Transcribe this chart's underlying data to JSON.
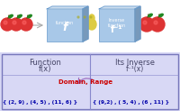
{
  "bg_top": "#ffffff",
  "bg_bottom": "#d8d8f5",
  "box_color_light": "#a8c8e8",
  "box_color_dark": "#6699cc",
  "box_top": "#ccddee",
  "box_side": "#7799bb",
  "arrow_color": "#aaaaaa",
  "text_dark": "#444466",
  "domain_color": "#cc0000",
  "set_color": "#0000aa",
  "divider_color": "#8888cc",
  "border_color": "#7777bb",
  "apple_color": "#dd3333",
  "apple_highlight": "#ff6666",
  "pear_color": "#ddcc44",
  "pear_dark": "#aaaa22",
  "leaf_color": "#228822",
  "func_box_label1": "function",
  "func_box_label2": "f",
  "inv_box_label1": "Inverse",
  "inv_box_label2": "function",
  "inv_box_label3": "f⁻¹",
  "func_col_label": "Function\nf(x)",
  "inv_col_label": "Its Inverse\nf⁻¹(x)",
  "domain_range_text": "Domain, Range",
  "set_left": "{ (2, 9) , (4, 5) , (11, 6) }",
  "set_right": "{ (9,2) , ( 5, 4) , (6 , 11) }"
}
